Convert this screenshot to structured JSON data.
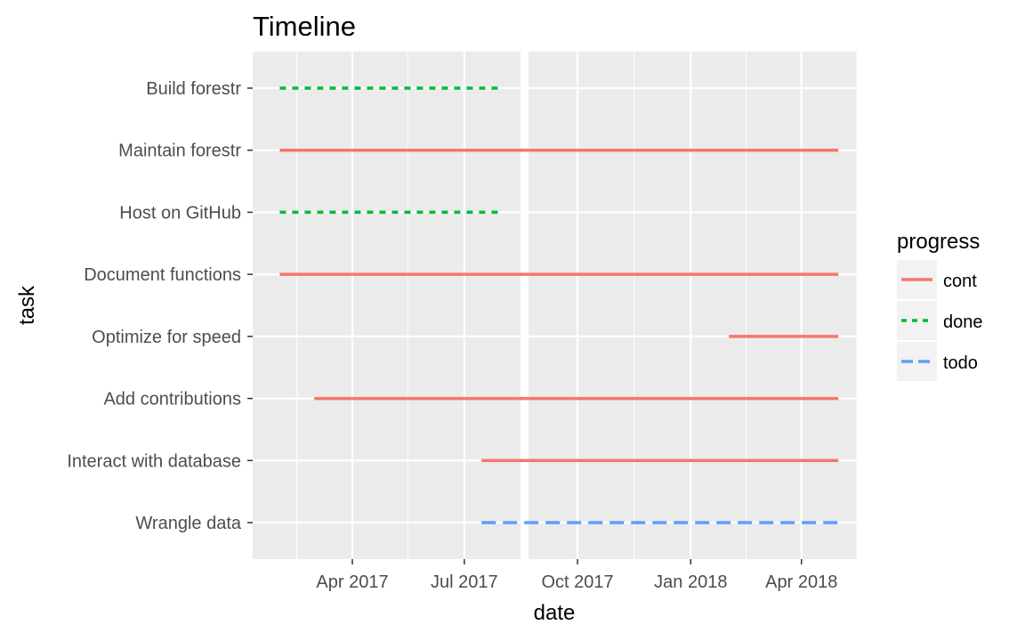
{
  "chart_data": {
    "type": "line",
    "title": "Timeline",
    "xlabel": "date",
    "ylabel": "task",
    "x_ticks": [
      "Apr 2017",
      "Jul 2017",
      "Oct 2017",
      "Jan 2018",
      "Apr 2018"
    ],
    "xlim": [
      "2017-01-10",
      "2018-05-16"
    ],
    "grid": true,
    "legend": {
      "title": "progress",
      "placement": "right",
      "entries": [
        {
          "label": "cont",
          "color": "#F8766D",
          "linetype": "solid"
        },
        {
          "label": "done",
          "color": "#00BA38",
          "linetype": "dotted"
        },
        {
          "label": "todo",
          "color": "#619CFF",
          "linetype": "dashed"
        }
      ]
    },
    "categories": [
      "Build forestr",
      "Maintain forestr",
      "Host on GitHub",
      "Document functions",
      "Optimize for speed",
      "Add contributions",
      "Interact with database",
      "Wrangle data"
    ],
    "series": [
      {
        "task": "Build forestr",
        "progress": "done",
        "start": "2017-02-01",
        "end": "2017-08-01"
      },
      {
        "task": "Maintain forestr",
        "progress": "cont",
        "start": "2017-02-01",
        "end": "2018-05-01"
      },
      {
        "task": "Host on GitHub",
        "progress": "done",
        "start": "2017-02-01",
        "end": "2017-08-01"
      },
      {
        "task": "Document functions",
        "progress": "cont",
        "start": "2017-02-01",
        "end": "2018-05-01"
      },
      {
        "task": "Optimize for speed",
        "progress": "cont",
        "start": "2018-02-01",
        "end": "2018-05-01"
      },
      {
        "task": "Add contributions",
        "progress": "cont",
        "start": "2017-03-01",
        "end": "2018-05-01"
      },
      {
        "task": "Interact with database",
        "progress": "cont",
        "start": "2017-07-15",
        "end": "2018-05-01"
      },
      {
        "task": "Wrangle data",
        "progress": "todo",
        "start": "2017-07-15",
        "end": "2018-05-01"
      }
    ]
  }
}
